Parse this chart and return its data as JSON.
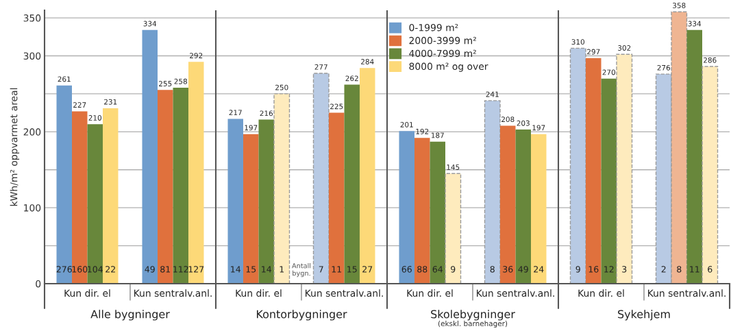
{
  "chart_data": {
    "type": "bar",
    "ylabel": "kWh/m² oppvarmet areal",
    "categories": [
      "Kun dir. el",
      "Kun sentralv.anl.",
      "Kun dir. el",
      "Kun sentralv.anl.",
      "Kun dir. el",
      "Kun sentralv.anl.",
      "Kun dir. el",
      "Kun sentralv.anl."
    ],
    "series": [
      {
        "name": "0-1999 m²",
        "color": "#6f9dcd",
        "values": [
          261,
          334,
          217,
          277,
          201,
          241,
          310,
          276
        ],
        "colors": [
          "#6f9dcd",
          "#6f9dcd",
          "#6f9dcd",
          "#b8cae4",
          "#6f9dcd",
          "#b8cae4",
          "#b8cae4",
          "#b8cae4"
        ]
      },
      {
        "name": "2000-3999 m²",
        "color": "#e0713d",
        "values": [
          227,
          255,
          197,
          225,
          192,
          208,
          297,
          358
        ],
        "colors": [
          "#e0713d",
          "#e0713d",
          "#e0713d",
          "#e0713d",
          "#e0713d",
          "#e0713d",
          "#e0713d",
          "#efb592"
        ]
      },
      {
        "name": "4000-7999 m²",
        "color": "#68873b",
        "values": [
          210,
          258,
          216,
          262,
          187,
          203,
          270,
          334
        ],
        "colors": [
          "#68873b",
          "#68873b",
          "#68873b",
          "#68873b",
          "#68873b",
          "#68873b",
          "#68873b",
          "#68873b"
        ]
      },
      {
        "name": "8000 m² og over",
        "color": "#fdd978",
        "values": [
          231,
          292,
          250,
          284,
          145,
          197,
          302,
          286
        ],
        "colors": [
          "#fdd978",
          "#fdd978",
          "#feebbd",
          "#fdd978",
          "#feebbd",
          "#fdd978",
          "#feebbd",
          "#feebbd"
        ]
      }
    ],
    "data_labels": true,
    "ylim": [
      0,
      360
    ],
    "yticks": [
      0,
      {
        "value": 50,
        "label": null
      },
      100,
      {
        "value": 150,
        "label": null
      },
      200,
      {
        "value": 250,
        "label": null
      },
      300,
      350
    ],
    "grid": "y",
    "legend": "top",
    "annotations": [
      "276",
      "160",
      "104",
      "22",
      "49",
      "81",
      "112",
      "127",
      "14",
      "15",
      "14",
      "1",
      "7",
      "11",
      "15",
      "27",
      "66",
      "88",
      "64",
      "9",
      "8",
      "36",
      "49",
      "24",
      "9",
      "16",
      "12",
      "3",
      "2",
      "8",
      "11",
      "6",
      "Antall\nbygn.",
      "Alle bygninger",
      "Kontorbygninger",
      "Skolebygninger",
      "Sykehjem",
      "(ekskl. barnehager)"
    ]
  }
}
